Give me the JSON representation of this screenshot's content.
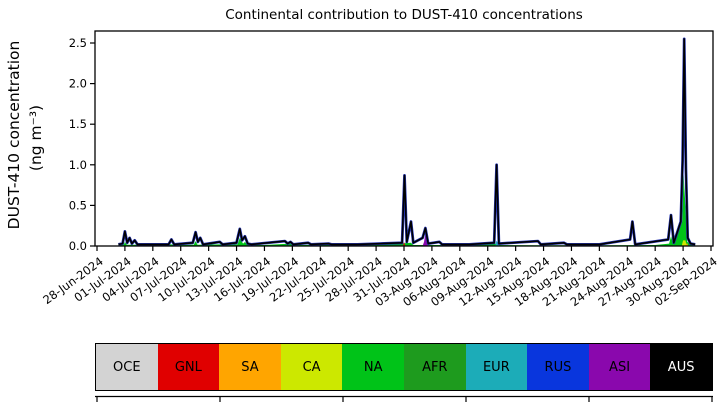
{
  "title": "Continental contribution to DUST-410 concentrations",
  "axes": {
    "y_label_line1": "DUST-410 concentration",
    "y_label_line2": "(ng m⁻³)",
    "y_ticks": [
      "0.0",
      "0.5",
      "1.0",
      "1.5",
      "2.0",
      "2.5"
    ],
    "x_ticks": [
      "28-Jun-2024",
      "01-Jul-2024",
      "04-Jul-2024",
      "07-Jul-2024",
      "10-Jul-2024",
      "13-Jul-2024",
      "16-Jul-2024",
      "19-Jul-2024",
      "22-Jul-2024",
      "25-Jul-2024",
      "28-Jul-2024",
      "31-Jul-2024",
      "03-Aug-2024",
      "06-Aug-2024",
      "09-Aug-2024",
      "12-Aug-2024",
      "15-Aug-2024",
      "18-Aug-2024",
      "21-Aug-2024",
      "24-Aug-2024",
      "27-Aug-2024",
      "30-Aug-2024",
      "02-Sep-2024"
    ]
  },
  "chart_data": {
    "type": "area",
    "title": "Continental contribution to DUST-410 concentrations",
    "xlabel": "",
    "ylabel": "DUST-410 concentration (ng m⁻³)",
    "x_axis": {
      "start_date": "28-Jun-2024",
      "end_date": "02-Sep-2024",
      "tick_interval_days": 3,
      "day_offset_reference": "28-Jun-2024"
    },
    "ylim": [
      0,
      2.65
    ],
    "yticks": [
      0.0,
      0.5,
      1.0,
      1.5,
      2.0,
      2.5
    ],
    "grid": false,
    "legend_position": "below-figure",
    "total_line": {
      "name": "total",
      "stroke_color": "#000000",
      "edge_color": "#2433b0",
      "points_day_value": [
        [
          2.3,
          0.02
        ],
        [
          2.75,
          0.03
        ],
        [
          3.0,
          0.18
        ],
        [
          3.25,
          0.04
        ],
        [
          3.5,
          0.1
        ],
        [
          3.75,
          0.03
        ],
        [
          4.05,
          0.07
        ],
        [
          4.35,
          0.02
        ],
        [
          7.7,
          0.02
        ],
        [
          8.0,
          0.08
        ],
        [
          8.3,
          0.02
        ],
        [
          10.3,
          0.04
        ],
        [
          10.6,
          0.17
        ],
        [
          10.85,
          0.05
        ],
        [
          11.1,
          0.1
        ],
        [
          11.4,
          0.02
        ],
        [
          13.2,
          0.05
        ],
        [
          13.5,
          0.02
        ],
        [
          15.0,
          0.04
        ],
        [
          15.35,
          0.21
        ],
        [
          15.6,
          0.07
        ],
        [
          15.9,
          0.12
        ],
        [
          16.2,
          0.03
        ],
        [
          16.6,
          0.02
        ],
        [
          20.2,
          0.06
        ],
        [
          20.5,
          0.03
        ],
        [
          20.8,
          0.05
        ],
        [
          21.1,
          0.02
        ],
        [
          22.7,
          0.04
        ],
        [
          23.0,
          0.02
        ],
        [
          24.9,
          0.03
        ],
        [
          25.2,
          0.02
        ],
        [
          28.0,
          0.02
        ],
        [
          32.8,
          0.04
        ],
        [
          33.05,
          0.87
        ],
        [
          33.3,
          0.05
        ],
        [
          33.75,
          0.3
        ],
        [
          34.0,
          0.04
        ],
        [
          35.0,
          0.1
        ],
        [
          35.3,
          0.22
        ],
        [
          35.6,
          0.03
        ],
        [
          36.8,
          0.05
        ],
        [
          37.1,
          0.02
        ],
        [
          40.0,
          0.02
        ],
        [
          42.7,
          0.04
        ],
        [
          42.95,
          1.0
        ],
        [
          43.2,
          0.03
        ],
        [
          47.4,
          0.06
        ],
        [
          47.7,
          0.02
        ],
        [
          50.2,
          0.04
        ],
        [
          50.5,
          0.02
        ],
        [
          54.0,
          0.02
        ],
        [
          57.3,
          0.08
        ],
        [
          57.55,
          0.3
        ],
        [
          57.85,
          0.02
        ],
        [
          61.4,
          0.08
        ],
        [
          61.7,
          0.38
        ],
        [
          62.0,
          0.04
        ],
        [
          62.75,
          0.3
        ],
        [
          62.95,
          1.05
        ],
        [
          63.12,
          2.55
        ],
        [
          63.3,
          0.95
        ],
        [
          63.5,
          0.1
        ],
        [
          63.8,
          0.03
        ],
        [
          64.3,
          0.02
        ]
      ]
    },
    "region_fills": [
      {
        "name": "NA",
        "color": "#00c318",
        "points_day_value": [
          [
            2.3,
            0.015
          ],
          [
            2.9,
            0.02
          ],
          [
            3.0,
            0.05
          ],
          [
            3.2,
            0.015
          ],
          [
            4.5,
            0.015
          ],
          [
            8.0,
            0.02
          ],
          [
            8.3,
            0.012
          ],
          [
            10.4,
            0.015
          ],
          [
            10.6,
            0.06
          ],
          [
            10.8,
            0.015
          ],
          [
            13.2,
            0.02
          ],
          [
            13.5,
            0.012
          ],
          [
            15.1,
            0.02
          ],
          [
            15.35,
            0.1
          ],
          [
            15.7,
            0.03
          ],
          [
            15.9,
            0.05
          ],
          [
            16.2,
            0.015
          ],
          [
            18.0,
            0.012
          ],
          [
            20.8,
            0.03
          ],
          [
            21.0,
            0.012
          ],
          [
            25.0,
            0.015
          ],
          [
            30.0,
            0.012
          ],
          [
            33.75,
            0.04
          ],
          [
            34.0,
            0.012
          ],
          [
            36.0,
            0.012
          ],
          [
            40.0,
            0.012
          ],
          [
            43.0,
            0.03
          ],
          [
            43.2,
            0.012
          ],
          [
            47.0,
            0.01
          ],
          [
            55.0,
            0.01
          ],
          [
            60.0,
            0.012
          ],
          [
            61.5,
            0.03
          ],
          [
            61.7,
            0.12
          ],
          [
            61.95,
            0.02
          ],
          [
            62.9,
            0.3
          ],
          [
            63.05,
            0.88
          ],
          [
            63.25,
            0.5
          ],
          [
            63.45,
            0.05
          ],
          [
            64.3,
            0.012
          ]
        ]
      },
      {
        "name": "CA",
        "color": "#cce800",
        "points_day_value": [
          [
            62.85,
            0.0
          ],
          [
            63.0,
            0.07
          ],
          [
            63.25,
            0.07
          ],
          [
            63.4,
            0.0
          ]
        ]
      },
      {
        "name": "SA",
        "color": "#ffa500",
        "points_day_value": [
          [
            63.3,
            0.0
          ],
          [
            63.42,
            0.04
          ],
          [
            63.55,
            0.0
          ]
        ]
      },
      {
        "name": "EUR",
        "color": "#1cacb8",
        "points_day_value": [
          [
            42.8,
            0.0
          ],
          [
            42.95,
            0.07
          ],
          [
            43.15,
            0.02
          ],
          [
            43.3,
            0.0
          ]
        ]
      },
      {
        "name": "ASI",
        "color": "#8a08ad",
        "points_day_value": [
          [
            35.0,
            0.0
          ],
          [
            35.15,
            0.05
          ],
          [
            35.3,
            0.15
          ],
          [
            35.5,
            0.02
          ],
          [
            35.7,
            0.0
          ]
        ]
      },
      {
        "name": "GNL",
        "color": "#e00000",
        "points_day_value": [
          [
            32.9,
            0.0
          ],
          [
            33.0,
            0.05
          ],
          [
            33.15,
            0.0
          ]
        ]
      }
    ],
    "notable_peaks": [
      {
        "date": "01-Jul-2024",
        "value": 0.18
      },
      {
        "date": "31-Jul-2024",
        "value": 0.87
      },
      {
        "date": "02-Aug-2024",
        "value": 0.22
      },
      {
        "date": "10-Aug-2024",
        "value": 1.0
      },
      {
        "date": "24-Aug-2024",
        "value": 0.3
      },
      {
        "date": "30-Aug-2024",
        "value": 2.55
      }
    ]
  },
  "legend": {
    "items": [
      {
        "label": "OCE",
        "color": "#d3d3d3",
        "text_color": "#000000"
      },
      {
        "label": "GNL",
        "color": "#e00000",
        "text_color": "#000000"
      },
      {
        "label": "SA",
        "color": "#ffa500",
        "text_color": "#000000"
      },
      {
        "label": "CA",
        "color": "#cce800",
        "text_color": "#000000"
      },
      {
        "label": "NA",
        "color": "#00c318",
        "text_color": "#000000"
      },
      {
        "label": "AFR",
        "color": "#1e9b1e",
        "text_color": "#000000"
      },
      {
        "label": "EUR",
        "color": "#1cacb8",
        "text_color": "#000000"
      },
      {
        "label": "RUS",
        "color": "#0936dd",
        "text_color": "#000000"
      },
      {
        "label": "ASI",
        "color": "#8a08ad",
        "text_color": "#000000"
      },
      {
        "label": "AUS",
        "color": "#000000",
        "text_color": "#ffffff"
      }
    ]
  },
  "bottom_partial_axis": {
    "tick_count": 6
  }
}
